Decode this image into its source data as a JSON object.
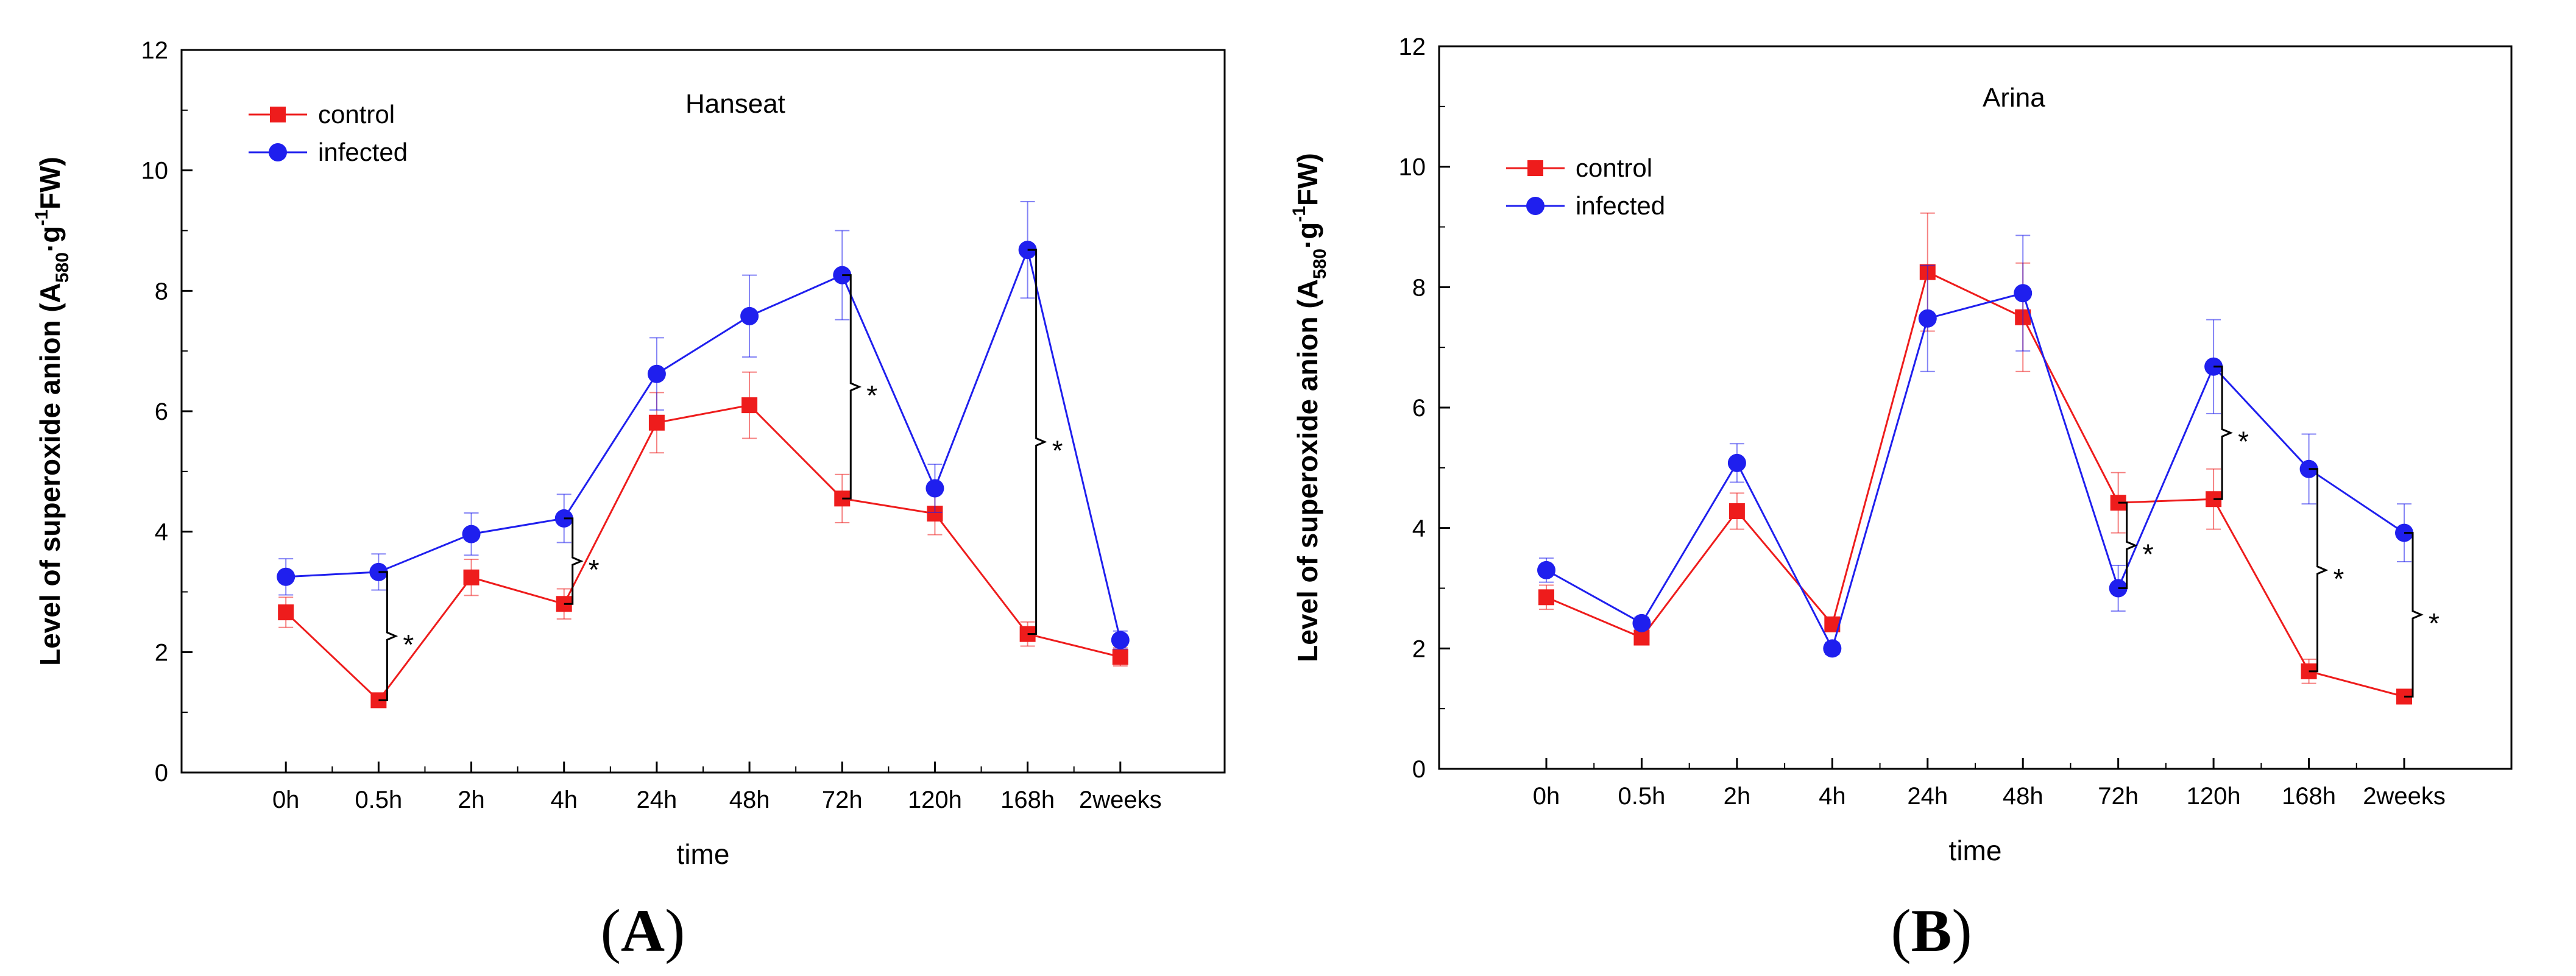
{
  "chart_data": [
    {
      "type": "line",
      "panel_label": "A",
      "title": "Hanseat",
      "xlabel": "time",
      "ylabel_parts": [
        "Level of superoxide anion (A",
        "580",
        "·g",
        "-1",
        "FW)"
      ],
      "categories": [
        "0h",
        "0.5h",
        "2h",
        "4h",
        "24h",
        "48h",
        "72h",
        "120h",
        "168h",
        "2weeks"
      ],
      "ylim": [
        0,
        12
      ],
      "yticks": [
        0,
        2,
        4,
        6,
        8,
        10,
        12
      ],
      "legend_position": "top-left",
      "series": [
        {
          "name": "control",
          "color": "#ee1c1c",
          "marker": "square",
          "values": [
            2.66,
            1.2,
            3.24,
            2.8,
            5.81,
            6.1,
            4.55,
            4.3,
            2.3,
            1.92
          ],
          "errors": [
            0.25,
            0.08,
            0.3,
            0.25,
            0.5,
            0.55,
            0.4,
            0.35,
            0.2,
            0.15
          ]
        },
        {
          "name": "infected",
          "color": "#1f1fee",
          "marker": "circle",
          "values": [
            3.25,
            3.33,
            3.96,
            4.22,
            6.62,
            7.58,
            8.26,
            4.72,
            8.68,
            2.2
          ],
          "errors": [
            0.3,
            0.3,
            0.35,
            0.4,
            0.6,
            0.68,
            0.74,
            0.4,
            0.8,
            0.15
          ]
        }
      ],
      "significance": [
        {
          "index": 1,
          "label": "*"
        },
        {
          "index": 3,
          "label": "*"
        },
        {
          "index": 6,
          "label": "*"
        },
        {
          "index": 8,
          "label": "*"
        }
      ]
    },
    {
      "type": "line",
      "panel_label": "B",
      "title": "Arina",
      "xlabel": "time",
      "ylabel_parts": [
        "Level of superoxide anion (A",
        "580",
        "·g",
        "-1",
        "FW)"
      ],
      "categories": [
        "0h",
        "0.5h",
        "2h",
        "4h",
        "24h",
        "48h",
        "72h",
        "120h",
        "168h",
        "2weeks"
      ],
      "ylim": [
        0,
        12
      ],
      "yticks": [
        0,
        2,
        4,
        6,
        8,
        10,
        12
      ],
      "legend_position": "top-left",
      "series": [
        {
          "name": "control",
          "color": "#ee1c1c",
          "marker": "square",
          "values": [
            2.85,
            2.18,
            4.28,
            2.4,
            8.25,
            7.5,
            4.42,
            4.48,
            1.62,
            1.2
          ],
          "errors": [
            0.2,
            0.12,
            0.3,
            0.12,
            0.98,
            0.9,
            0.5,
            0.5,
            0.2,
            0.12
          ]
        },
        {
          "name": "infected",
          "color": "#1f1fee",
          "marker": "circle",
          "values": [
            3.3,
            2.42,
            5.08,
            2.0,
            7.48,
            7.9,
            3.0,
            6.68,
            4.98,
            3.92
          ],
          "errors": [
            0.2,
            0.1,
            0.32,
            0.1,
            0.88,
            0.96,
            0.38,
            0.78,
            0.58,
            0.48
          ]
        }
      ],
      "significance": [
        {
          "index": 6,
          "label": "*"
        },
        {
          "index": 7,
          "label": "*"
        },
        {
          "index": 8,
          "label": "*"
        },
        {
          "index": 9,
          "label": "*"
        }
      ]
    }
  ]
}
